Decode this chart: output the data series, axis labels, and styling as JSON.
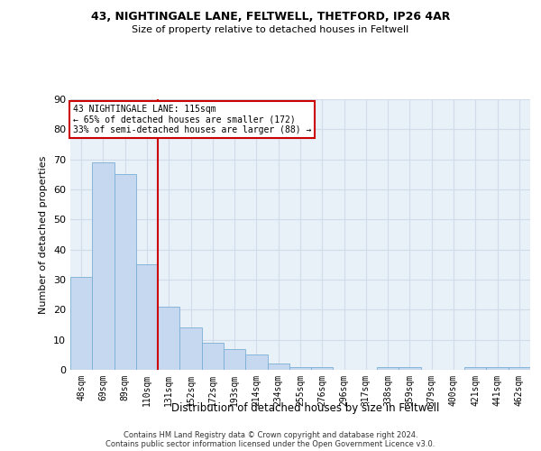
{
  "title1": "43, NIGHTINGALE LANE, FELTWELL, THETFORD, IP26 4AR",
  "title2": "Size of property relative to detached houses in Feltwell",
  "xlabel": "Distribution of detached houses by size in Feltwell",
  "ylabel": "Number of detached properties",
  "categories": [
    "48sqm",
    "69sqm",
    "89sqm",
    "110sqm",
    "131sqm",
    "152sqm",
    "172sqm",
    "193sqm",
    "214sqm",
    "234sqm",
    "255sqm",
    "276sqm",
    "296sqm",
    "317sqm",
    "338sqm",
    "359sqm",
    "379sqm",
    "400sqm",
    "421sqm",
    "441sqm",
    "462sqm"
  ],
  "values": [
    31,
    69,
    65,
    35,
    21,
    14,
    9,
    7,
    5,
    2,
    1,
    1,
    0,
    0,
    1,
    1,
    0,
    0,
    1,
    1,
    1
  ],
  "bar_color": "#c5d8f0",
  "bar_edge_color": "#7bafd4",
  "vline_x_index": 3,
  "vline_color": "#cc0000",
  "annotation_text": "43 NIGHTINGALE LANE: 115sqm\n← 65% of detached houses are smaller (172)\n33% of semi-detached houses are larger (88) →",
  "annotation_box_color": "#ffffff",
  "annotation_box_edge_color": "#cc0000",
  "grid_color": "#d0dce8",
  "bg_color": "#e8f0f8",
  "ylim": [
    0,
    90
  ],
  "yticks": [
    0,
    10,
    20,
    30,
    40,
    50,
    60,
    70,
    80,
    90
  ],
  "footer1": "Contains HM Land Registry data © Crown copyright and database right 2024.",
  "footer2": "Contains public sector information licensed under the Open Government Licence v3.0."
}
